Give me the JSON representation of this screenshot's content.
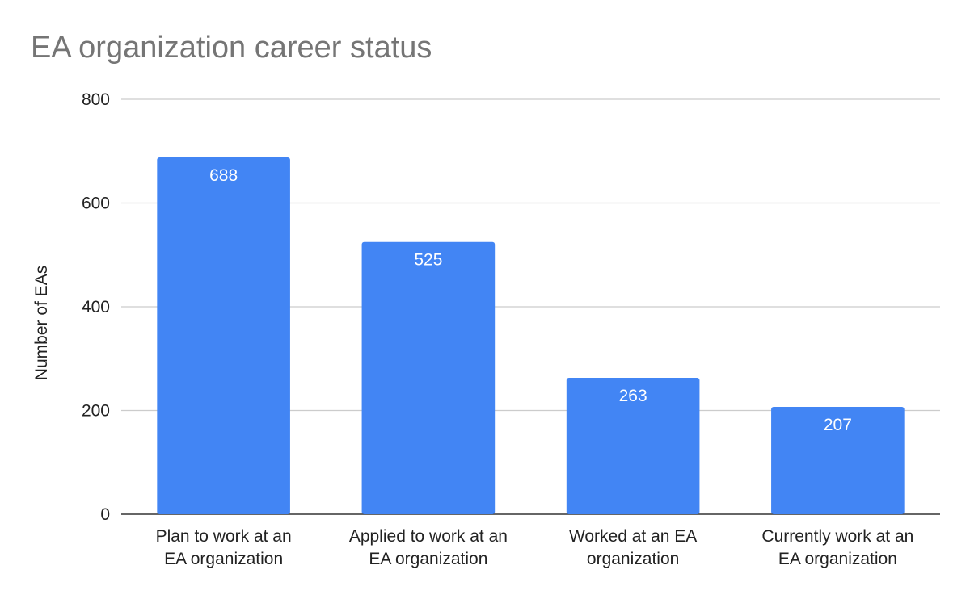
{
  "chart_data": {
    "type": "bar",
    "title": "EA organization career status",
    "xlabel": "",
    "ylabel": "Number of EAs",
    "categories": [
      [
        "Plan to work at an",
        "EA organization"
      ],
      [
        "Applied to work at an",
        "EA organization"
      ],
      [
        "Worked at an EA",
        "organization"
      ],
      [
        "Currently work at an",
        "EA organization"
      ]
    ],
    "values": [
      688,
      525,
      263,
      207
    ],
    "ylim": [
      0,
      800
    ],
    "yticks": [
      0,
      200,
      400,
      600,
      800
    ],
    "grid": true,
    "legend": "none",
    "data_labels": true,
    "bar_color": "#4285f4"
  }
}
